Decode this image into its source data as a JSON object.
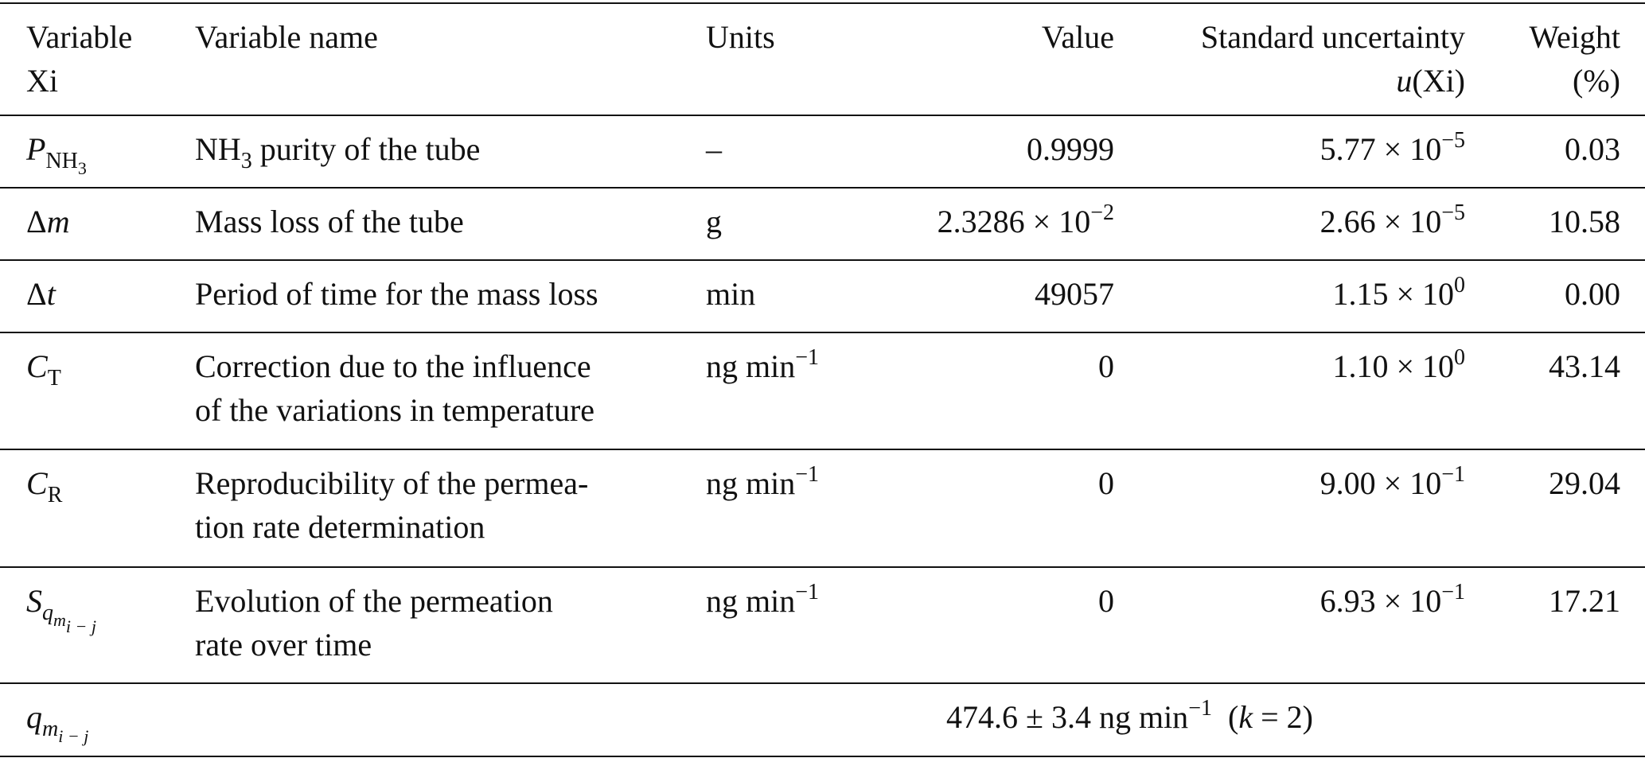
{
  "table": {
    "header": {
      "variable": [
        "Variable",
        "Xi"
      ],
      "name": "Variable name",
      "units": "Units",
      "value": "Value",
      "uncertainty": [
        "Standard uncertainty",
        "u",
        "(Xi)"
      ],
      "weight": [
        "Weight",
        "(%)"
      ]
    },
    "rows": [
      {
        "symbol": [
          "P",
          "NH",
          "3"
        ],
        "name": [
          "NH",
          "3",
          " purity of the tube"
        ],
        "units": "–",
        "value": "0.9999",
        "uncertainty": [
          "5.77 × 10",
          "−5"
        ],
        "weight": "0.03"
      },
      {
        "symbol": [
          "Δ",
          "m"
        ],
        "name": "Mass loss of the tube",
        "units": "g",
        "value": [
          "2.3286 × 10",
          "−2"
        ],
        "uncertainty": [
          "2.66 × 10",
          "−5"
        ],
        "weight": "10.58"
      },
      {
        "symbol": [
          "Δ",
          "t"
        ],
        "name": "Period of time for the mass loss",
        "units": "min",
        "value": "49057",
        "uncertainty": [
          "1.15 × 10",
          "0"
        ],
        "weight": "0.00"
      },
      {
        "symbol": [
          "C",
          "T"
        ],
        "name": [
          "Correction due to the influence",
          "of the variations in temperature"
        ],
        "units": [
          "ng min",
          "−1"
        ],
        "value": "0",
        "uncertainty": [
          "1.10 × 10",
          "0"
        ],
        "weight": "43.14"
      },
      {
        "symbol": [
          "C",
          "R"
        ],
        "name": [
          "Reproducibility of the permea-",
          "tion rate determination"
        ],
        "units": [
          "ng min",
          "−1"
        ],
        "value": "0",
        "uncertainty": [
          "9.00 × 10",
          "−1"
        ],
        "weight": "29.04"
      },
      {
        "symbol": [
          "S",
          "q",
          "m",
          "i − j"
        ],
        "name": [
          "Evolution of the permeation",
          "rate over time"
        ],
        "units": [
          "ng min",
          "−1"
        ],
        "value": "0",
        "uncertainty": [
          "6.93 × 10",
          "−1"
        ],
        "weight": "17.21"
      }
    ],
    "footer": {
      "symbol": [
        "q",
        "m",
        "i − j"
      ],
      "result": [
        "474.6 ± 3.4 ng min",
        "−1",
        "(",
        "k",
        " = 2)"
      ]
    }
  }
}
